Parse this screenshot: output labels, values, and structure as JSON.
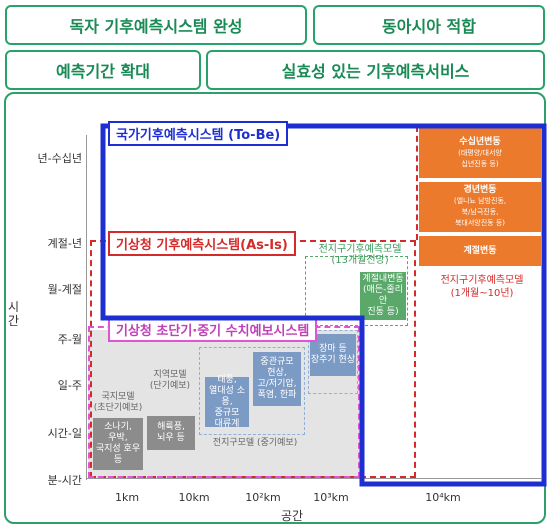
{
  "header": {
    "tag1": "독자 기후예측시스템 완성",
    "tag2": "동아시아 적합",
    "tag3": "예측기간 확대",
    "tag4": "실효성 있는 기후예측서비스"
  },
  "axes": {
    "y_title": "시간",
    "x_title": "공간",
    "y_labels": [
      "년-수십년",
      "계절-년",
      "월-계절",
      "주-월",
      "일-주",
      "시간-일",
      "분-시간"
    ],
    "x_labels": [
      "1km",
      "10km",
      "10²km",
      "10³km",
      "10⁴km"
    ]
  },
  "systems": {
    "national": "국가기후예측시스템 (To-Be)",
    "kma_climate": "기상청 기후예측시스템(As-Is)",
    "kma_short": "기상청 초단기·중기 수치예보시스템"
  },
  "boxes": {
    "local_model_label": "국지모델\n(초단기예보)",
    "local_model_box": "소나기,\n우박,\n국지성 호우\n등",
    "regional_model_label": "지역모델\n(단기예보)",
    "regional_model_box": "해륙풍,\n뇌우 등",
    "typhoon_box": "태풍,\n열대성 소용,\n중규모\n대류계",
    "meso_box": "중관규모\n현상,\n고/저기압,\n폭염, 한파",
    "global_mid_label": "전지구모델 (중기예보)",
    "monsoon_box": "장마 등\n장주기 현상",
    "global_climate_label": "전지구기후예측모델\n(13개월전망)",
    "seasonal_inner_box": "계절내변동\n(매든-줄리안\n진동 등)",
    "decadal_title": "수십년변동",
    "decadal_sub": "(태평양/대서양\n십년진동 등)",
    "interannual_title": "경년변동",
    "interannual_sub": "(엘니뇨 남방진동,\n북/남극진동,\n북대서양진동 등)",
    "seasonal_box": "계절변동",
    "global_climate_right": "전지구기후예측모델",
    "global_climate_right_sub": "(1개월~10년)"
  },
  "colors": {
    "header_green": "#27a36a",
    "national_blue": "#1e2fd1",
    "kma_red": "#d42a2a",
    "kma_pink": "#e052d8",
    "orange": "#ec7a2d",
    "gray": "#8c8c8c"
  }
}
